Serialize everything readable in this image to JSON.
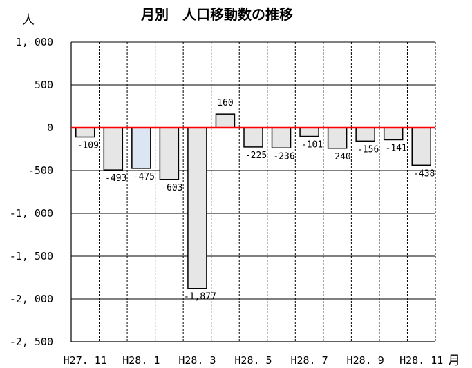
{
  "chart_data": {
    "type": "bar",
    "title": "月別　人口移動数の推移",
    "ylabel": "人",
    "xlabel": "月",
    "ylim": [
      -2500,
      1000
    ],
    "yticks": [
      1000,
      500,
      0,
      -500,
      -1000,
      -1500,
      -2000,
      -2500
    ],
    "ytick_labels": [
      "1, 000",
      "500",
      "0",
      "-500",
      "-1, 000",
      "-1, 500",
      "-2, 000",
      "-2, 500"
    ],
    "categories": [
      "H27.11",
      "H27.12",
      "H28.1",
      "H28.2",
      "H28.3",
      "H28.4",
      "H28.5",
      "H28.6",
      "H28.7",
      "H28.8",
      "H28.9",
      "H28.10",
      "H28.11"
    ],
    "xtick_labels": [
      "H27. 11",
      "",
      "H28. 1",
      "",
      "H28. 3",
      "",
      "H28. 5",
      "",
      "H28. 7",
      "",
      "H28. 9",
      "",
      "H28. 11"
    ],
    "values": [
      -109,
      -493,
      -475,
      -603,
      -1877,
      160,
      -225,
      -236,
      -101,
      -240,
      -156,
      -141,
      -438
    ],
    "value_labels": [
      "-109",
      "-493",
      "-475",
      "-603",
      "-1,877",
      "160",
      "-225",
      "-236",
      "-101",
      "-240",
      "-156",
      "-141",
      "-438"
    ],
    "grid": true,
    "colors": {
      "bar_fill": "#e6e6e6",
      "highlight_fill": "#dce6f2",
      "bar_stroke": "#000000",
      "zero_line": "#ff0000"
    },
    "highlight_index": 2
  }
}
